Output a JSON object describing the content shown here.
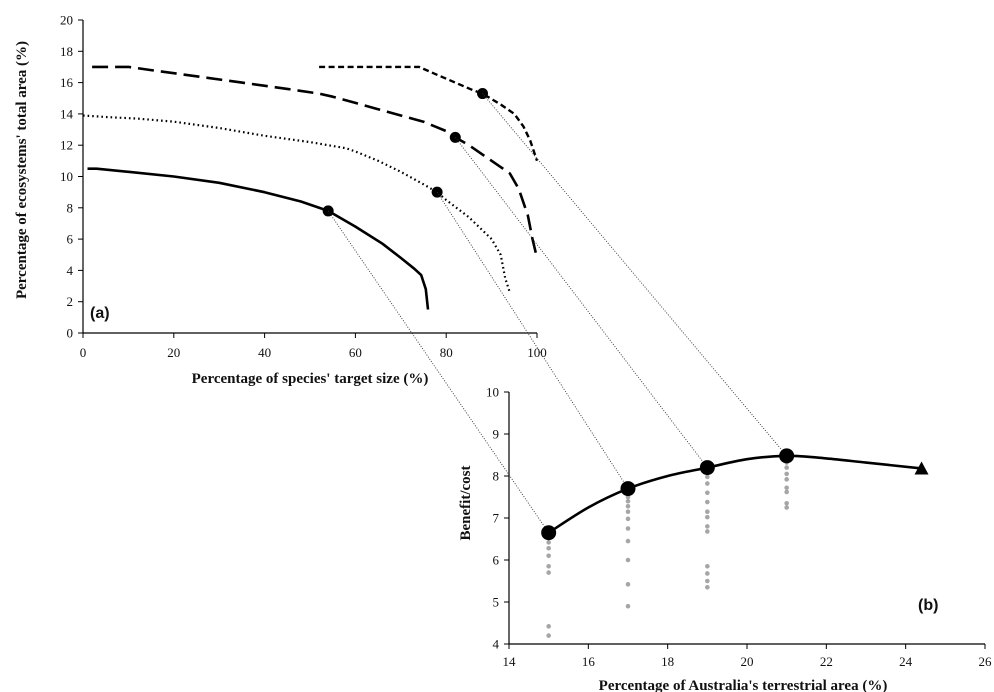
{
  "chart_data": [
    {
      "panel": "(a)",
      "type": "line",
      "xlabel": "Percentage of species' target size (%)",
      "ylabel": "Percentage of ecosystems' total area (%)",
      "xlim": [
        0,
        100
      ],
      "ylim": [
        0,
        20
      ],
      "xticks": [
        "0",
        "20",
        "40",
        "60",
        "80",
        "100"
      ],
      "yticks": [
        "0",
        "2",
        "4",
        "6",
        "8",
        "10",
        "12",
        "14",
        "16",
        "18",
        "20"
      ],
      "grid": false,
      "series": [
        {
          "style": "solid",
          "points": [
            [
              1,
              10.5
            ],
            [
              3,
              10.5
            ],
            [
              10,
              10.3
            ],
            [
              20,
              10.0
            ],
            [
              30,
              9.6
            ],
            [
              40,
              9.0
            ],
            [
              48,
              8.4
            ],
            [
              54,
              7.8
            ],
            [
              60,
              6.8
            ],
            [
              66,
              5.7
            ],
            [
              70,
              4.8
            ],
            [
              73,
              4.1
            ],
            [
              74.5,
              3.7
            ],
            [
              75.5,
              2.8
            ],
            [
              76,
              1.5
            ]
          ],
          "highlight": [
            54,
            7.8
          ]
        },
        {
          "style": "dotted",
          "points": [
            [
              0,
              13.9
            ],
            [
              5,
              13.8
            ],
            [
              12,
              13.7
            ],
            [
              20,
              13.5
            ],
            [
              30,
              13.1
            ],
            [
              40,
              12.6
            ],
            [
              50,
              12.2
            ],
            [
              58,
              11.8
            ],
            [
              60,
              11.6
            ],
            [
              65,
              11.0
            ],
            [
              70,
              10.3
            ],
            [
              75,
              9.5
            ],
            [
              78,
              9.0
            ],
            [
              80,
              8.5
            ],
            [
              85,
              7.4
            ],
            [
              90,
              6.0
            ],
            [
              92,
              5.0
            ],
            [
              93,
              3.5
            ],
            [
              94,
              2.6
            ]
          ],
          "highlight": [
            78,
            9.0
          ]
        },
        {
          "style": "long-dash",
          "points": [
            [
              2,
              17.0
            ],
            [
              10,
              17.0
            ],
            [
              15,
              16.8
            ],
            [
              25,
              16.4
            ],
            [
              35,
              16.0
            ],
            [
              45,
              15.6
            ],
            [
              52,
              15.3
            ],
            [
              55,
              15.1
            ],
            [
              60,
              14.7
            ],
            [
              65,
              14.3
            ],
            [
              70,
              13.9
            ],
            [
              75,
              13.5
            ],
            [
              80,
              12.9
            ],
            [
              82,
              12.5
            ],
            [
              85,
              12.0
            ],
            [
              90,
              11.0
            ],
            [
              94,
              10.2
            ],
            [
              96,
              9.2
            ],
            [
              98,
              7.5
            ],
            [
              99,
              6.0
            ],
            [
              100,
              4.8
            ]
          ],
          "highlight": [
            82,
            12.5
          ]
        },
        {
          "style": "short-dash",
          "points": [
            [
              52,
              17.0
            ],
            [
              60,
              17.0
            ],
            [
              70,
              17.0
            ],
            [
              74,
              17.0
            ],
            [
              78,
              16.5
            ],
            [
              82,
              16.0
            ],
            [
              86,
              15.5
            ],
            [
              88,
              15.3
            ],
            [
              92,
              14.6
            ],
            [
              95,
              14.0
            ],
            [
              97,
              13.2
            ],
            [
              98.5,
              12.3
            ],
            [
              100,
              11.0
            ]
          ],
          "highlight": [
            88,
            15.3
          ]
        }
      ]
    },
    {
      "panel": "(b)",
      "type": "line",
      "xlabel": "Percentage of Australia's terrestrial area (%)",
      "ylabel": "Benefit/cost",
      "xlim": [
        14,
        26
      ],
      "ylim": [
        4,
        10
      ],
      "xticks": [
        "14",
        "16",
        "18",
        "20",
        "22",
        "24",
        "26"
      ],
      "yticks": [
        "4",
        "5",
        "6",
        "7",
        "8",
        "9",
        "10"
      ],
      "grid": false,
      "series": [
        {
          "style": "solid",
          "points": [
            [
              15,
              6.65
            ],
            [
              16,
              7.25
            ],
            [
              17,
              7.7
            ],
            [
              18,
              8.0
            ],
            [
              19,
              8.2
            ],
            [
              20,
              8.4
            ],
            [
              21,
              8.48
            ],
            [
              22,
              8.42
            ],
            [
              23,
              8.32
            ],
            [
              24.4,
              8.18
            ]
          ],
          "markers": [
            [
              15,
              6.65
            ],
            [
              17,
              7.7
            ],
            [
              19,
              8.2
            ],
            [
              21,
              8.48
            ]
          ],
          "end_marker": [
            24.4,
            8.18
          ]
        }
      ],
      "scatter_grey": [
        [
          15,
          6.42
        ],
        [
          15,
          6.28
        ],
        [
          15,
          6.1
        ],
        [
          15,
          5.85
        ],
        [
          15,
          5.7
        ],
        [
          15,
          4.42
        ],
        [
          15,
          4.2
        ],
        [
          17,
          7.5
        ],
        [
          17,
          7.4
        ],
        [
          17,
          7.28
        ],
        [
          17,
          7.15
        ],
        [
          17,
          6.98
        ],
        [
          17,
          6.75
        ],
        [
          17,
          6.45
        ],
        [
          17,
          6.0
        ],
        [
          17,
          5.42
        ],
        [
          17,
          4.9
        ],
        [
          19,
          7.98
        ],
        [
          19,
          7.82
        ],
        [
          19,
          7.6
        ],
        [
          19,
          7.38
        ],
        [
          19,
          7.15
        ],
        [
          19,
          7.02
        ],
        [
          19,
          6.8
        ],
        [
          19,
          6.68
        ],
        [
          19,
          5.85
        ],
        [
          19,
          5.68
        ],
        [
          19,
          5.5
        ],
        [
          19,
          5.35
        ],
        [
          21,
          8.32
        ],
        [
          21,
          8.2
        ],
        [
          21,
          8.05
        ],
        [
          21,
          7.92
        ],
        [
          21,
          7.72
        ],
        [
          21,
          7.62
        ],
        [
          21,
          7.35
        ],
        [
          21,
          7.25
        ]
      ]
    }
  ],
  "connectors": [
    {
      "from": [
        54,
        7.8
      ],
      "to": [
        15,
        6.65
      ]
    },
    {
      "from": [
        78,
        9.0
      ],
      "to": [
        17,
        7.7
      ]
    },
    {
      "from": [
        82,
        12.5
      ],
      "to": [
        19,
        8.2
      ]
    },
    {
      "from": [
        88,
        15.3
      ],
      "to": [
        21,
        8.48
      ]
    }
  ],
  "colors": {
    "line": "#000000",
    "grey_points": "#a6a6a6",
    "connector": "#333333"
  }
}
